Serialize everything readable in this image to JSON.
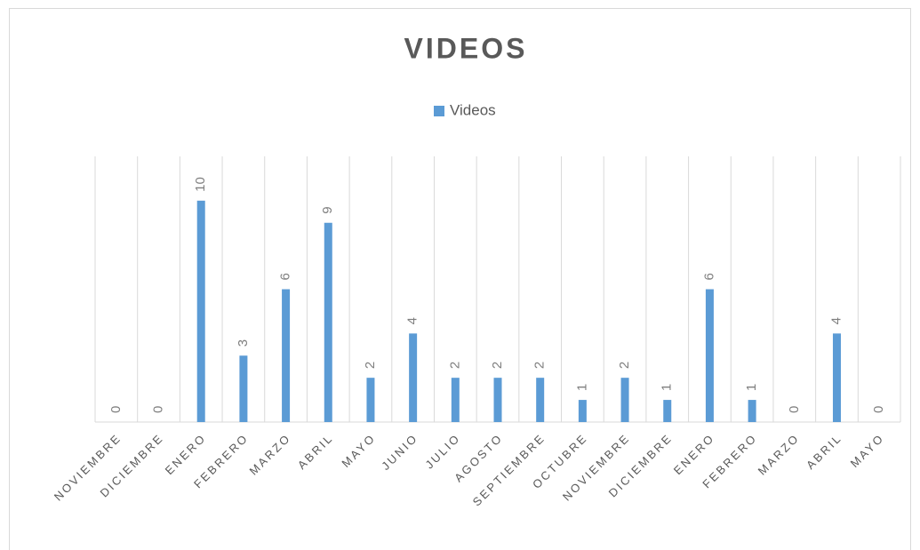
{
  "chart_data": {
    "type": "bar",
    "title": "VIDEOS",
    "categories": [
      "NOVIEMBRE",
      "DICIEMBRE",
      "ENERO",
      "FEBRERO",
      "MARZO",
      "ABRIL",
      "MAYO",
      "JUNIO",
      "JULIO",
      "AGOSTO",
      "SEPTIEMBRE",
      "OCTUBRE",
      "NOVIEMBRE",
      "DICIEMBRE",
      "ENERO",
      "FEBRERO",
      "MARZO",
      "ABRIL",
      "MAYO"
    ],
    "series": [
      {
        "name": "Videos",
        "color": "#5b9bd5",
        "values": [
          0,
          0,
          10,
          3,
          6,
          9,
          2,
          4,
          2,
          2,
          2,
          1,
          2,
          1,
          6,
          1,
          0,
          4,
          0
        ]
      }
    ],
    "ylim": [
      0,
      12
    ],
    "legend": "top",
    "grid": true
  }
}
